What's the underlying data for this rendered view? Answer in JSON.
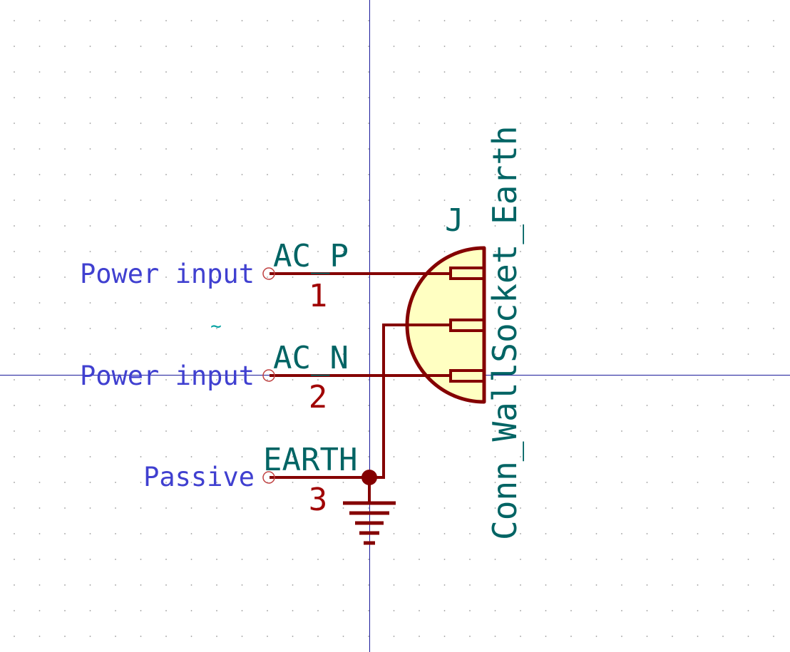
{
  "colors": {
    "background": "#ffffff",
    "grid_dot": "#9a9a9a",
    "crosshair": "#1a1a9a",
    "body_stroke": "#840000",
    "body_fill": "#ffffc2",
    "pin_number": "#a00000",
    "pin_name": "#006464",
    "electrical_type": "#4040d0",
    "field_text": "#006464",
    "pin_end": "#c04040"
  },
  "symbol": {
    "reference": "J",
    "value": "Conn_WallSocket_Earth",
    "ac_glyph": "~",
    "pins": [
      {
        "number": "1",
        "name": "AC_P",
        "electrical_type": "Power input"
      },
      {
        "number": "2",
        "name": "AC_N",
        "electrical_type": "Power input"
      },
      {
        "number": "3",
        "name": "EARTH",
        "electrical_type": "Passive"
      }
    ]
  }
}
